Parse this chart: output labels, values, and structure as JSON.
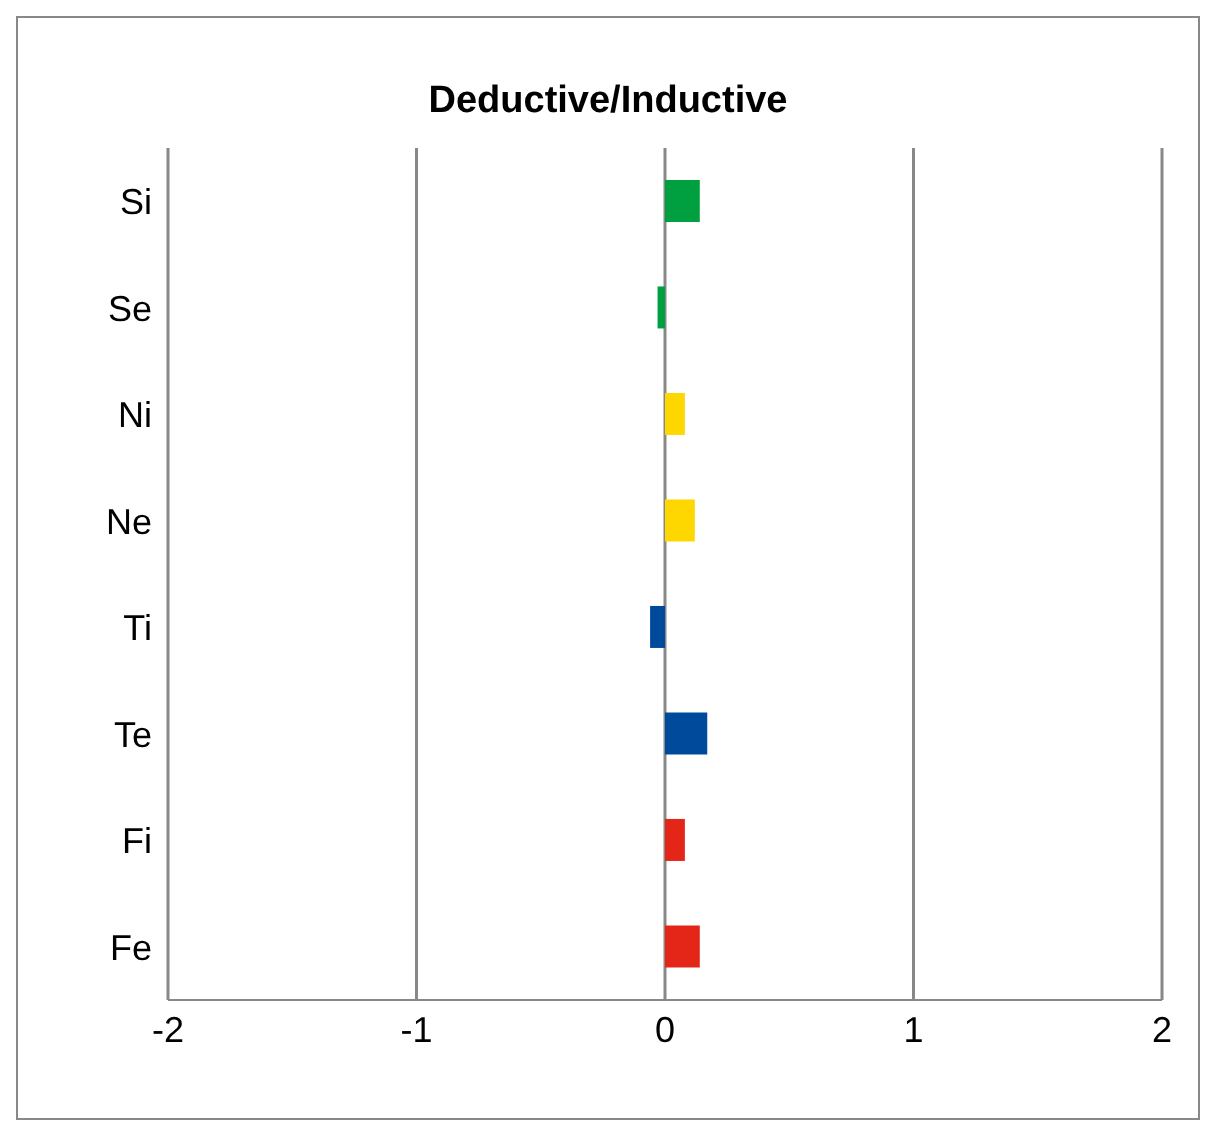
{
  "chart_data": {
    "type": "bar",
    "orientation": "horizontal",
    "title": "Deductive/Inductive",
    "categories": [
      "Si",
      "Se",
      "Ni",
      "Ne",
      "Ti",
      "Te",
      "Fi",
      "Fe"
    ],
    "values": [
      0.14,
      -0.03,
      0.08,
      0.12,
      -0.06,
      0.17,
      0.08,
      0.14
    ],
    "colors": [
      "#00a040",
      "#00a040",
      "#ffd700",
      "#ffd700",
      "#004a9c",
      "#004a9c",
      "#e32618",
      "#e32618"
    ],
    "xlim": [
      -2,
      2
    ],
    "xticks": [
      -2,
      -1,
      0,
      1,
      2
    ],
    "grid": "x"
  }
}
